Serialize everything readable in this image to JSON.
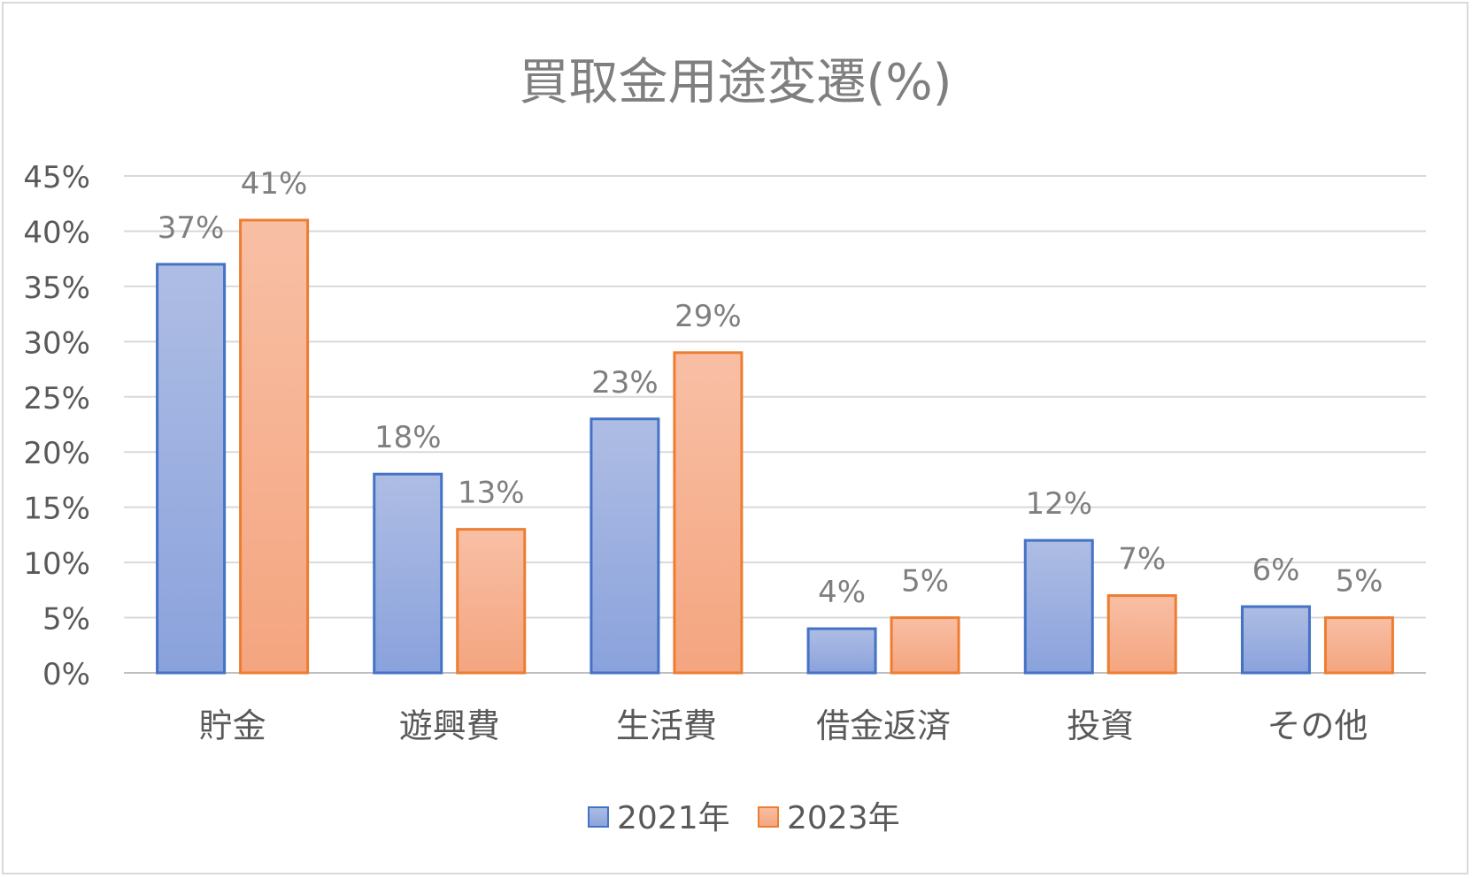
{
  "chart_data": {
    "type": "bar",
    "title": "買取金用途変遷(%)",
    "xlabel": "",
    "ylabel": "",
    "categories": [
      "貯金",
      "遊興費",
      "生活費",
      "借金返済",
      "投資",
      "その他"
    ],
    "series": [
      {
        "name": "2021年",
        "values": [
          37,
          18,
          23,
          4,
          12,
          6
        ],
        "labels": [
          "37%",
          "18%",
          "23%",
          "4%",
          "12%",
          "6%"
        ],
        "color": "#4472c4"
      },
      {
        "name": "2023年",
        "values": [
          41,
          13,
          29,
          5,
          7,
          5
        ],
        "labels": [
          "41%",
          "13%",
          "29%",
          "5%",
          "7%",
          "5%"
        ],
        "color": "#ed7d31"
      }
    ],
    "ylim": [
      0,
      45
    ],
    "yticks": [
      "0%",
      "5%",
      "10%",
      "15%",
      "20%",
      "25%",
      "30%",
      "35%",
      "40%",
      "45%"
    ],
    "grid": true,
    "legend_position": "bottom"
  }
}
